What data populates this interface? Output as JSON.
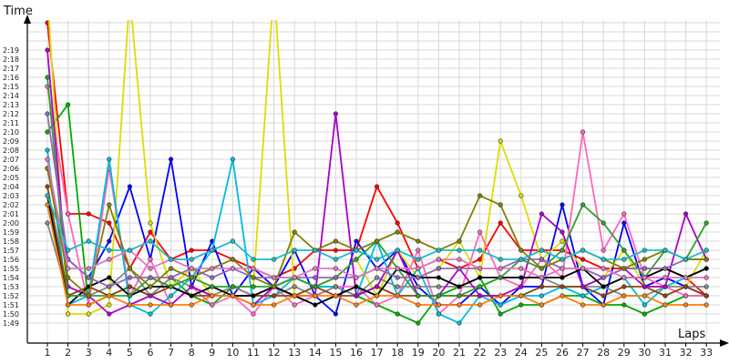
{
  "chart_data": {
    "type": "line",
    "xlabel": "Laps",
    "ylabel": "Time",
    "grid": true,
    "legend": "none",
    "x": [
      1,
      2,
      3,
      4,
      5,
      6,
      7,
      8,
      9,
      10,
      11,
      12,
      13,
      14,
      15,
      16,
      17,
      18,
      19,
      20,
      21,
      22,
      23,
      24,
      25,
      26,
      27,
      28,
      29,
      30,
      31,
      32,
      33
    ],
    "x_tick_labels": [
      "1",
      "2",
      "3",
      "4",
      "5",
      "6",
      "7",
      "8",
      "9",
      "10",
      "11",
      "12",
      "13",
      "14",
      "15",
      "16",
      "17",
      "18",
      "19",
      "20",
      "21",
      "22",
      "23",
      "24",
      "25",
      "26",
      "27",
      "28",
      "29",
      "30",
      "31",
      "32",
      "33"
    ],
    "y_tick_labels": [
      "1:49",
      "1:50",
      "1:51",
      "1:52",
      "1:53",
      "1:54",
      "1:55",
      "1:56",
      "1:57",
      "1:58",
      "1:59",
      "2:00",
      "2:01",
      "2:02",
      "2:03",
      "2:04",
      "2:05",
      "2:06",
      "2:07",
      "2:08",
      "2:09",
      "2:10",
      "2:11",
      "2:12",
      "2:13",
      "2:14",
      "2:15",
      "2:16",
      "2:17",
      "2:18",
      "2:19"
    ],
    "ylim_seconds": [
      108,
      144
    ],
    "series": [
      {
        "color": "#ff0000",
        "values": [
          142,
          121,
          121,
          120,
          115,
          119,
          116,
          117,
          117,
          116,
          115,
          114,
          115,
          117,
          117,
          117,
          124,
          120,
          115,
          116,
          115,
          116,
          120,
          117,
          117,
          117,
          116,
          115,
          115,
          115,
          115,
          114,
          112
        ]
      },
      {
        "color": "#0000ff",
        "values": [
          126,
          116,
          114,
          118,
          124,
          116,
          127,
          113,
          118,
          112,
          115,
          113,
          117,
          112,
          110,
          118,
          115,
          117,
          113,
          111,
          111,
          113,
          111,
          113,
          113,
          122,
          113,
          111,
          120,
          113,
          114,
          113,
          112
        ]
      },
      {
        "color": "#00aa00",
        "values": [
          130,
          133,
          111,
          112,
          113,
          112,
          114,
          112,
          111,
          113,
          112,
          113,
          114,
          113,
          113,
          112,
          111,
          110,
          109,
          112,
          113,
          114,
          110,
          111,
          111,
          112,
          112,
          111,
          111,
          110,
          111,
          112,
          112
        ]
      },
      {
        "color": "#dddd00",
        "values": [
          145,
          110,
          110,
          111,
          145,
          120,
          113,
          115,
          112,
          113,
          113,
          146,
          112,
          113,
          114,
          116,
          112,
          117,
          114,
          115,
          118,
          114,
          129,
          123,
          116,
          118,
          115,
          114,
          117,
          113,
          113,
          113,
          117
        ]
      },
      {
        "color": "#ff66bb",
        "values": [
          135,
          121,
          111,
          126,
          112,
          116,
          111,
          113,
          111,
          112,
          110,
          113,
          111,
          112,
          113,
          113,
          111,
          112,
          117,
          110,
          112,
          119,
          114,
          113,
          116,
          114,
          130,
          117,
          121,
          114,
          113,
          112,
          112
        ]
      },
      {
        "color": "#00bbdd",
        "values": [
          128,
          111,
          112,
          127,
          111,
          110,
          112,
          114,
          117,
          127,
          111,
          112,
          114,
          113,
          113,
          112,
          118,
          112,
          115,
          110,
          109,
          112,
          111,
          112,
          112,
          113,
          112,
          113,
          114,
          111,
          113,
          114,
          115
        ]
      },
      {
        "color": "#888888",
        "values": [
          120,
          112,
          112,
          113,
          115,
          112,
          114,
          113,
          112,
          113,
          112,
          112,
          113,
          112,
          113,
          112,
          114,
          113,
          113,
          113,
          113,
          113,
          114,
          114,
          114,
          113,
          113,
          113,
          112,
          112,
          113,
          113,
          113
        ]
      },
      {
        "color": "#8b4513",
        "values": [
          124,
          112,
          113,
          112,
          113,
          112,
          113,
          112,
          112,
          112,
          112,
          112,
          112,
          113,
          112,
          112,
          113,
          112,
          112,
          112,
          112,
          112,
          112,
          112,
          113,
          113,
          113,
          112,
          113,
          113,
          112,
          113,
          112
        ]
      },
      {
        "color": "#aa00cc",
        "values": [
          139,
          113,
          112,
          110,
          111,
          112,
          111,
          113,
          112,
          112,
          111,
          113,
          112,
          112,
          132,
          112,
          113,
          117,
          112,
          112,
          115,
          112,
          112,
          113,
          121,
          119,
          113,
          114,
          115,
          113,
          113,
          121,
          116
        ]
      },
      {
        "color": "#000000",
        "values": [
          123,
          111,
          113,
          114,
          112,
          113,
          113,
          112,
          113,
          112,
          112,
          113,
          112,
          111,
          112,
          113,
          112,
          115,
          114,
          114,
          113,
          114,
          114,
          114,
          114,
          114,
          115,
          113,
          114,
          114,
          115,
          114,
          115
        ]
      },
      {
        "color": "#2ca02c",
        "values": [
          136,
          112,
          112,
          112,
          112,
          114,
          113,
          114,
          113,
          113,
          113,
          113,
          114,
          113,
          114,
          116,
          118,
          115,
          112,
          112,
          112,
          113,
          114,
          116,
          115,
          117,
          122,
          120,
          117,
          114,
          117,
          116,
          120
        ]
      },
      {
        "color": "#9467bd",
        "values": [
          132,
          116,
          114,
          113,
          114,
          114,
          114,
          115,
          114,
          115,
          114,
          114,
          114,
          114,
          114,
          114,
          115,
          114,
          114,
          115,
          115,
          115,
          115,
          116,
          116,
          115,
          115,
          114,
          115,
          115,
          115,
          116,
          116
        ]
      },
      {
        "color": "#808000",
        "values": [
          126,
          114,
          112,
          122,
          115,
          113,
          115,
          114,
          115,
          116,
          114,
          113,
          119,
          117,
          118,
          117,
          118,
          119,
          118,
          117,
          118,
          123,
          122,
          117,
          115,
          116,
          117,
          116,
          115,
          116,
          117,
          116,
          116
        ]
      },
      {
        "color": "#e377c2",
        "values": [
          127,
          115,
          115,
          116,
          117,
          115,
          116,
          115,
          115,
          115,
          115,
          114,
          114,
          115,
          115,
          114,
          115,
          115,
          115,
          116,
          116,
          115,
          115,
          115,
          114,
          115,
          115,
          115,
          114,
          114,
          114,
          114,
          114
        ]
      },
      {
        "color": "#17becf",
        "values": [
          123,
          117,
          118,
          117,
          117,
          118,
          116,
          116,
          117,
          118,
          116,
          116,
          117,
          117,
          116,
          117,
          116,
          117,
          116,
          117,
          117,
          117,
          116,
          116,
          117,
          116,
          117,
          116,
          116,
          117,
          117,
          116,
          117
        ]
      },
      {
        "color": "#ff7f0e",
        "values": [
          122,
          111,
          111,
          112,
          111,
          111,
          111,
          111,
          112,
          112,
          111,
          111,
          112,
          112,
          112,
          111,
          112,
          112,
          111,
          111,
          111,
          111,
          112,
          112,
          111,
          112,
          111,
          111,
          112,
          112,
          111,
          111,
          111
        ]
      }
    ]
  }
}
